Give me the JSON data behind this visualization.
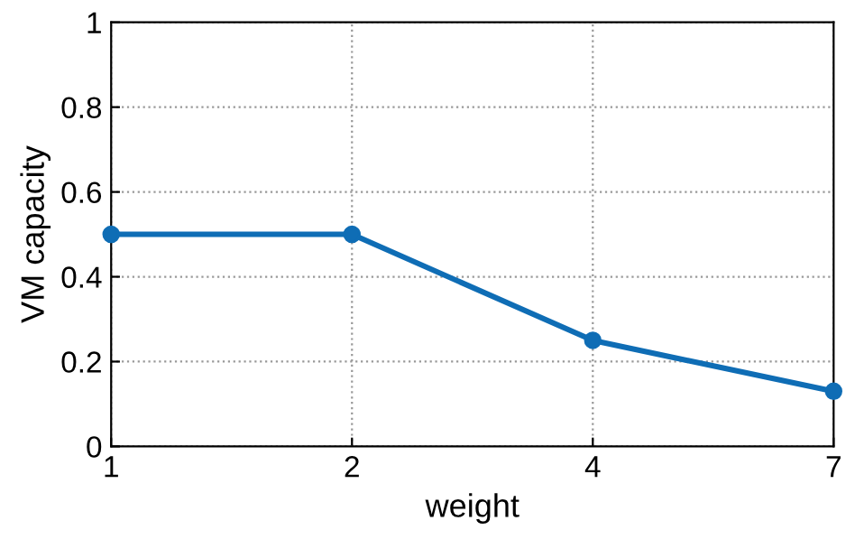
{
  "chart_data": {
    "type": "line",
    "xlabel": "weight",
    "ylabel": "VM capacity",
    "categories": [
      "1",
      "2",
      "4",
      "7"
    ],
    "series": [
      {
        "color": "#0f6db5",
        "values": [
          0.5,
          0.5,
          0.25,
          0.13
        ]
      }
    ],
    "ylim": [
      0,
      1
    ],
    "yticks": [
      0,
      0.2,
      0.4,
      0.6,
      0.8,
      1
    ],
    "grid": true,
    "marker": "circle",
    "line_style": "solid",
    "legend": false
  }
}
